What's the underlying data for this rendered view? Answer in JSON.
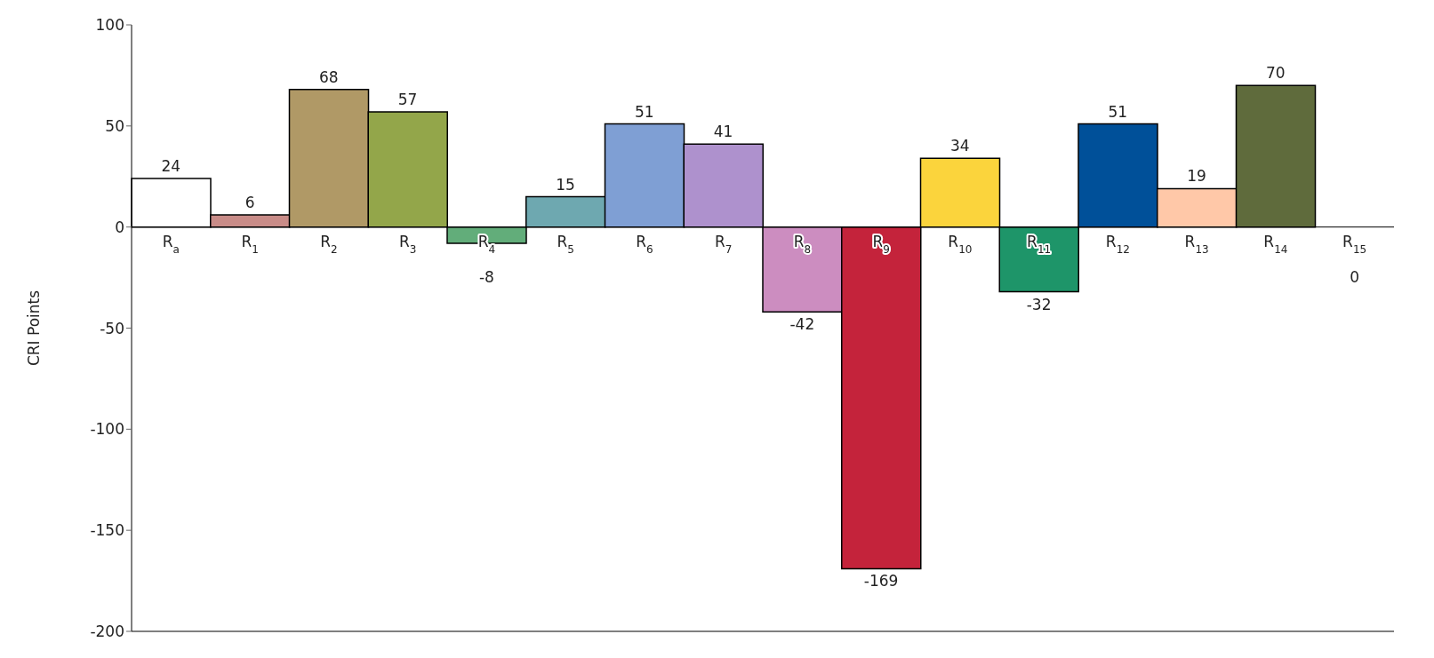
{
  "chart_data": {
    "type": "bar",
    "ylabel": "CRI Points",
    "categories": [
      "R$_{a}$",
      "R$_{1}$",
      "R$_{2}$",
      "R$_{3}$",
      "R$_{4}$",
      "R$_{5}$",
      "R$_{6}$",
      "R$_{7}$",
      "R$_{8}$",
      "R$_{9}$",
      "R$_{10}$",
      "R$_{11}$",
      "R$_{12}$",
      "R$_{13}$",
      "R$_{14}$",
      "R$_{15}$"
    ],
    "values": [
      24,
      6,
      68,
      57,
      -8,
      15,
      51,
      41,
      -42,
      -169,
      34,
      -32,
      51,
      19,
      70,
      0
    ],
    "colors": [
      "#ffffff",
      "#c98c88",
      "#b09966",
      "#93a64a",
      "#62ad7a",
      "#6ea8b0",
      "#7f9fd4",
      "#ae91cd",
      "#cc8dc0",
      "#c4233b",
      "#fbd43c",
      "#1e9569",
      "#005099",
      "#ffc8a8",
      "#5f6b3c",
      "#808080"
    ],
    "ylim": [
      -200,
      100
    ],
    "yticks": [
      -200,
      -150,
      -100,
      -50,
      0,
      50,
      100
    ],
    "data_labels": true
  }
}
